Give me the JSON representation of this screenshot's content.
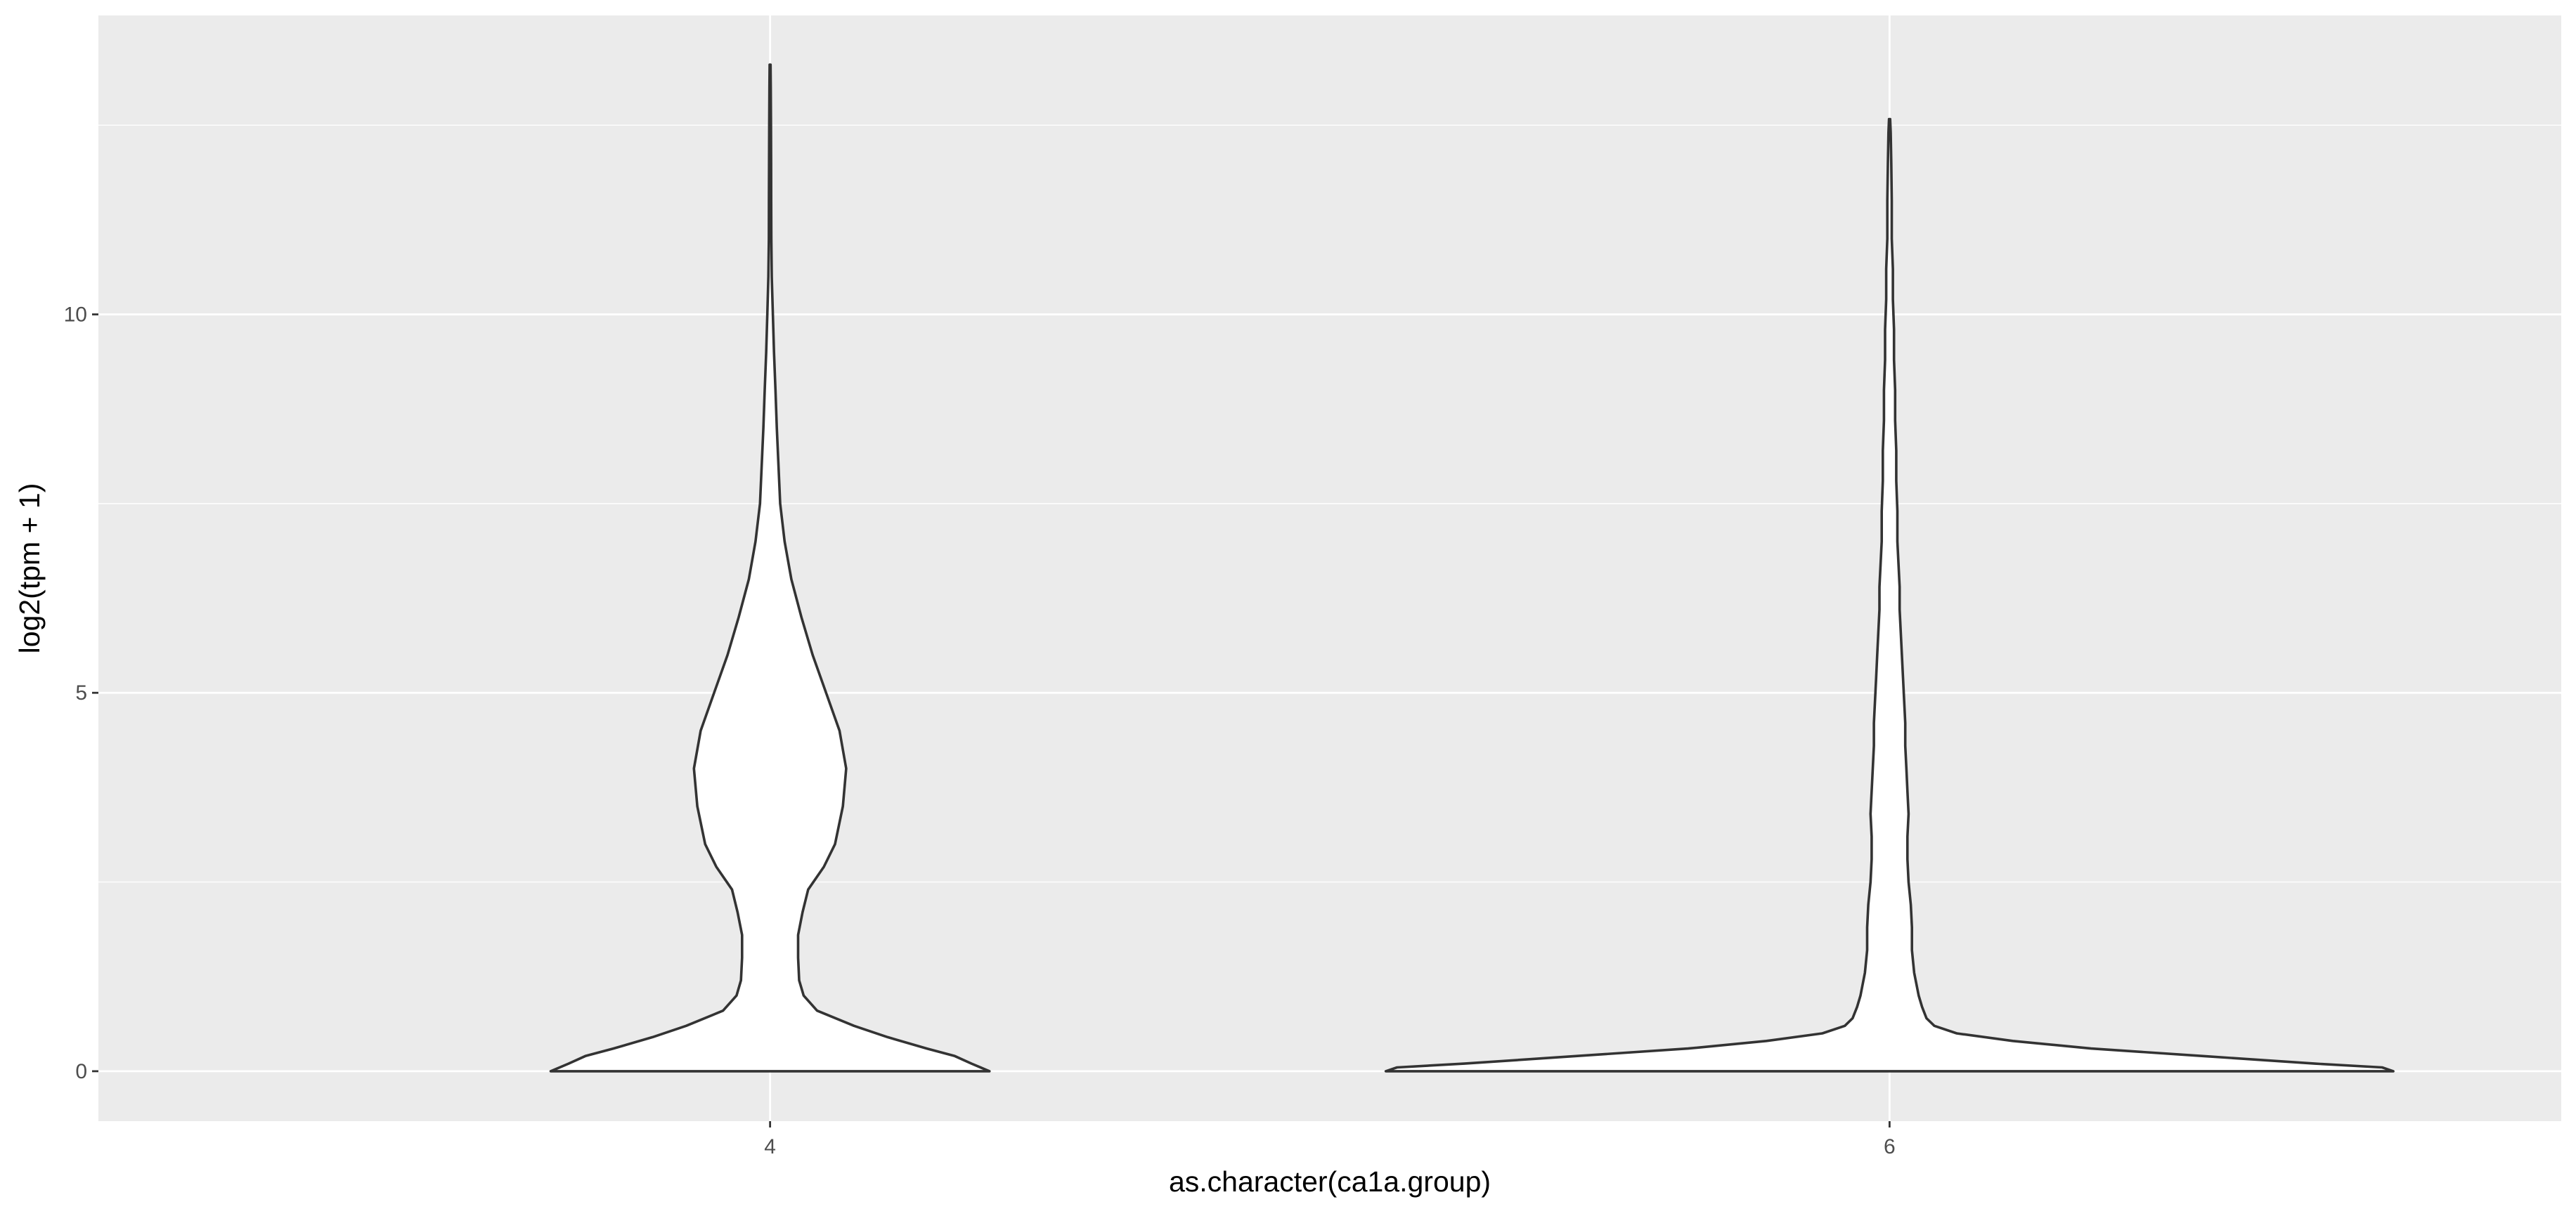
{
  "chart_data": {
    "type": "violin",
    "title": "",
    "xlabel": "as.character(ca1a.group)",
    "ylabel": "log2(tpm + 1)",
    "categories": [
      "4",
      "6"
    ],
    "ylim": [
      -0.66,
      13.95
    ],
    "yticks": [
      0,
      5,
      10
    ],
    "y_tick_labels": [
      "0",
      "5",
      "10"
    ],
    "grid": true,
    "legend": "none",
    "colors": {
      "panel": "#ebebeb",
      "grid": "#ffffff",
      "fill": "#ffffff",
      "outline": "#333333",
      "tick_text": "#4d4d4d",
      "axis_title": "#000000"
    },
    "violins": [
      {
        "category": "4",
        "profile": [
          [
            0.0,
            0.196
          ],
          [
            0.1,
            0.18
          ],
          [
            0.2,
            0.165
          ],
          [
            0.3,
            0.14
          ],
          [
            0.45,
            0.105
          ],
          [
            0.6,
            0.075
          ],
          [
            0.8,
            0.042
          ],
          [
            1.0,
            0.03
          ],
          [
            1.2,
            0.026
          ],
          [
            1.5,
            0.025
          ],
          [
            1.8,
            0.025
          ],
          [
            2.1,
            0.029
          ],
          [
            2.4,
            0.034
          ],
          [
            2.7,
            0.048
          ],
          [
            3.0,
            0.058
          ],
          [
            3.5,
            0.065
          ],
          [
            4.0,
            0.068
          ],
          [
            4.5,
            0.062
          ],
          [
            5.0,
            0.05
          ],
          [
            5.5,
            0.038
          ],
          [
            6.0,
            0.028
          ],
          [
            6.5,
            0.019
          ],
          [
            7.0,
            0.013
          ],
          [
            7.5,
            0.009
          ],
          [
            8.0,
            0.0075
          ],
          [
            8.5,
            0.006
          ],
          [
            9.0,
            0.0048
          ],
          [
            9.5,
            0.0035
          ],
          [
            10.0,
            0.0025
          ],
          [
            10.5,
            0.0015
          ],
          [
            11.0,
            0.0011
          ],
          [
            11.5,
            0.001
          ],
          [
            12.0,
            0.0009
          ],
          [
            12.5,
            0.0008
          ],
          [
            13.0,
            0.0006
          ],
          [
            13.3,
            0.0004
          ]
        ]
      },
      {
        "category": "6",
        "profile": [
          [
            0.0,
            0.45
          ],
          [
            0.05,
            0.44
          ],
          [
            0.1,
            0.38
          ],
          [
            0.2,
            0.28
          ],
          [
            0.3,
            0.18
          ],
          [
            0.4,
            0.11
          ],
          [
            0.5,
            0.06
          ],
          [
            0.6,
            0.04
          ],
          [
            0.7,
            0.033
          ],
          [
            0.85,
            0.029
          ],
          [
            1.0,
            0.026
          ],
          [
            1.3,
            0.022
          ],
          [
            1.6,
            0.02
          ],
          [
            1.9,
            0.02
          ],
          [
            2.2,
            0.019
          ],
          [
            2.5,
            0.017
          ],
          [
            2.8,
            0.016
          ],
          [
            3.1,
            0.016
          ],
          [
            3.4,
            0.017
          ],
          [
            3.7,
            0.016
          ],
          [
            4.0,
            0.015
          ],
          [
            4.3,
            0.014
          ],
          [
            4.6,
            0.014
          ],
          [
            4.9,
            0.013
          ],
          [
            5.2,
            0.012
          ],
          [
            5.5,
            0.011
          ],
          [
            5.8,
            0.01
          ],
          [
            6.1,
            0.009
          ],
          [
            6.4,
            0.009
          ],
          [
            6.7,
            0.008
          ],
          [
            7.0,
            0.007
          ],
          [
            7.4,
            0.007
          ],
          [
            7.8,
            0.006
          ],
          [
            8.2,
            0.006
          ],
          [
            8.6,
            0.005
          ],
          [
            9.0,
            0.005
          ],
          [
            9.4,
            0.004
          ],
          [
            9.8,
            0.004
          ],
          [
            10.2,
            0.003
          ],
          [
            10.6,
            0.003
          ],
          [
            11.0,
            0.002
          ],
          [
            11.5,
            0.002
          ],
          [
            12.0,
            0.0015
          ],
          [
            12.4,
            0.001
          ],
          [
            12.58,
            0.0005
          ]
        ]
      }
    ]
  }
}
